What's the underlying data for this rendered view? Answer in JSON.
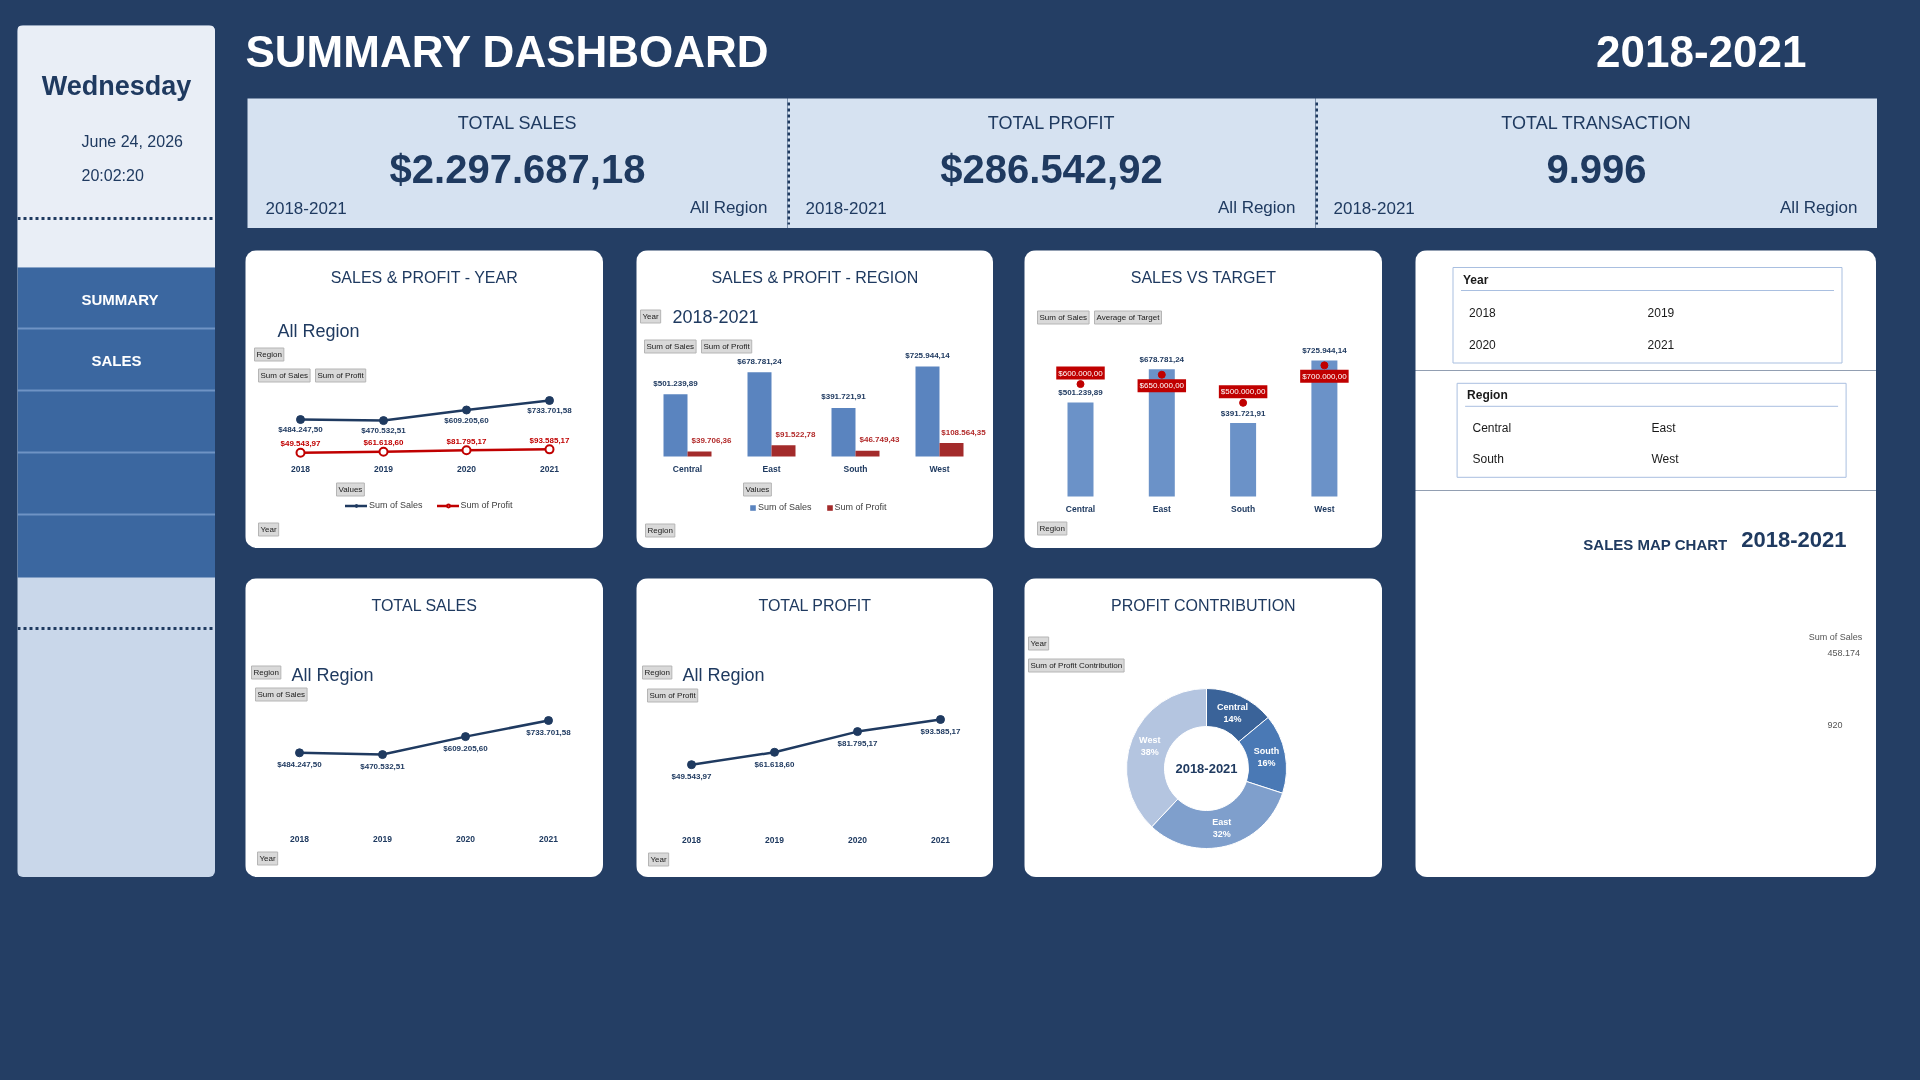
{
  "chart_data": [
    {
      "type": "other",
      "annotations": [
        "Wednesday",
        "June 24, 2026",
        "20:02:20",
        "SUMMARY",
        "SALES"
      ]
    },
    {
      "type": "other",
      "title": "SUMMARY DASHBOARD",
      "subtitle": "2018-2021"
    },
    {
      "type": "other",
      "title": "TOTAL SALES",
      "annotations": [
        "$2.297.687,18",
        "2018-2021",
        "All Region"
      ]
    },
    {
      "type": "other",
      "title": "TOTAL PROFIT",
      "annotations": [
        "$286.542,92",
        "2018-2021",
        "All Region"
      ]
    },
    {
      "type": "other",
      "title": "TOTAL TRANSACTION",
      "annotations": [
        "9.996",
        "2018-2021",
        "All Region"
      ]
    },
    {
      "type": "line",
      "title": "SALES & PROFIT - YEAR",
      "subtitle": "All Region",
      "categories": [
        "2018",
        "2019",
        "2020",
        "2021"
      ],
      "marker": "circle",
      "legend": "bottom",
      "series": [
        {
          "name": "Sum of Sales",
          "color": "#1f3a60",
          "values": [
            484247.5,
            470532.51,
            609205.6,
            733701.58
          ],
          "value_labels": [
            "$484.247,50",
            "$470.532,51",
            "$609.205,60",
            "$733.701,58"
          ]
        },
        {
          "name": "Sum of Profit",
          "color": "#c00000",
          "values": [
            49543.97,
            61618.6,
            81795.17,
            93585.17
          ],
          "value_labels": [
            "$49.543,97",
            "$61.618,60",
            "$81.795,17",
            "$93.585,17"
          ]
        }
      ],
      "annotations": [
        "Region",
        "Sum of Sales",
        "Sum of Profit",
        "Values",
        "Year"
      ]
    },
    {
      "type": "bar",
      "title": "SALES & PROFIT - REGION",
      "subtitle": "2018-2021",
      "categories": [
        "Central",
        "East",
        "South",
        "West"
      ],
      "legend": "bottom",
      "series": [
        {
          "name": "Sum of Sales",
          "color": "#5a84bf",
          "values": [
            501239.89,
            678781.24,
            391721.91,
            725944.14
          ],
          "value_labels": [
            "$501.239,89",
            "$678.781,24",
            "$391.721,91",
            "$725.944,14"
          ]
        },
        {
          "name": "Sum of Profit",
          "color": "#a32b2b",
          "values": [
            39706.36,
            91522.78,
            46749.43,
            108564.35
          ],
          "value_labels": [
            "$39.706,36",
            "$91.522,78",
            "$46.749,43",
            "$108.564,35"
          ]
        }
      ],
      "annotations": [
        "Year",
        "Sum of Sales",
        "Sum of Profit",
        "Values",
        "Region"
      ]
    },
    {
      "type": "bar",
      "title": "SALES VS TARGET",
      "categories": [
        "Central",
        "East",
        "South",
        "West"
      ],
      "series": [
        {
          "color": "#6b92c8",
          "values": [
            501239.89,
            678781.24,
            391721.91,
            725944.14
          ],
          "value_labels": [
            "$501.239,89",
            "$678.781,24",
            "$391.721,91",
            "$725.944,14"
          ]
        },
        {
          "type": "scatter",
          "marker": "circle",
          "color": "#c00000",
          "values": [
            600000,
            650000,
            500000,
            700000
          ],
          "value_labels": [
            "$600.000,00",
            "$650.000,00",
            "$500.000,00",
            "$700.000,00"
          ]
        }
      ],
      "annotations": [
        "Sum of Sales",
        "Average of Target",
        "Region"
      ]
    },
    {
      "type": "other",
      "title": "Year",
      "categories": [
        "2018",
        "2019",
        "2020",
        "2021"
      ]
    },
    {
      "type": "other",
      "title": "Region",
      "categories": [
        "Central",
        "East",
        "South",
        "West"
      ]
    },
    {
      "type": "other",
      "title": "SALES MAP CHART",
      "subtitle": "2018-2021",
      "annotations": [
        "Sum of Sales",
        "458.174",
        "920"
      ]
    },
    {
      "type": "line",
      "title": "TOTAL SALES",
      "subtitle": "All Region",
      "categories": [
        "2018",
        "2019",
        "2020",
        "2021"
      ],
      "marker": "circle",
      "color": "#1f3a60",
      "values": [
        484247.5,
        470532.51,
        609205.6,
        733701.58
      ],
      "value_labels": [
        "$484.247,50",
        "$470.532,51",
        "$609.205,60",
        "$733.701,58"
      ],
      "annotations": [
        "Region",
        "Sum of Sales",
        "Year"
      ]
    },
    {
      "type": "line",
      "title": "TOTAL PROFIT",
      "subtitle": "All Region",
      "categories": [
        "2018",
        "2019",
        "2020",
        "2021"
      ],
      "marker": "circle",
      "color": "#1f3a60",
      "values": [
        49543.97,
        61618.6,
        81795.17,
        93585.17
      ],
      "value_labels": [
        "$49.543,97",
        "$61.618,60",
        "$81.795,17",
        "$93.585,17"
      ],
      "annotations": [
        "Region",
        "Sum of Profit",
        "Year"
      ]
    },
    {
      "type": "donut",
      "title": "PROFIT CONTRIBUTION",
      "subtitle": "2018-2021",
      "categories": [
        "Central",
        "South",
        "East",
        "West"
      ],
      "values": [
        14,
        16,
        32,
        38
      ],
      "value_labels": [
        "14%",
        "16%",
        "32%",
        "38%"
      ],
      "colors": [
        "#3a6399",
        "#4a79b5",
        "#7f9fcc",
        "#b4c5e0"
      ],
      "annotations": [
        "Year",
        "Sum of Profit Contribution"
      ]
    }
  ]
}
